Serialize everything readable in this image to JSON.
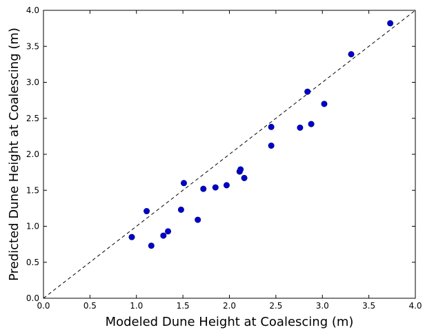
{
  "chart_data": {
    "type": "scatter",
    "title": "",
    "xlabel": "Modeled Dune Height at Coalescing (m)",
    "ylabel": "Predicted Dune Height at Coalescing (m)",
    "xlim": [
      0.0,
      4.0
    ],
    "ylim": [
      0.0,
      4.0
    ],
    "xticks": [
      "0.0",
      "0.5",
      "1.0",
      "1.5",
      "2.0",
      "2.5",
      "3.0",
      "3.5",
      "4.0"
    ],
    "yticks": [
      "0.0",
      "0.5",
      "1.0",
      "1.5",
      "2.0",
      "2.5",
      "3.0",
      "3.5",
      "4.0"
    ],
    "grid": false,
    "reference_line": {
      "x": [
        0.0,
        4.0
      ],
      "y": [
        0.0,
        4.0
      ],
      "style": "dashed",
      "color": "#000000"
    },
    "series": [
      {
        "color": "#0000cc",
        "x": [
          0.95,
          1.11,
          1.16,
          1.29,
          1.34,
          1.48,
          1.51,
          1.66,
          1.72,
          1.85,
          1.97,
          2.11,
          2.12,
          2.16,
          2.45,
          2.45,
          2.76,
          2.84,
          2.88,
          3.02,
          3.31,
          3.73
        ],
        "y": [
          0.85,
          1.21,
          0.73,
          0.87,
          0.93,
          1.23,
          1.6,
          1.09,
          1.52,
          1.54,
          1.57,
          1.76,
          1.79,
          1.67,
          2.12,
          2.38,
          2.37,
          2.87,
          2.42,
          2.7,
          3.39,
          3.82
        ]
      }
    ]
  }
}
